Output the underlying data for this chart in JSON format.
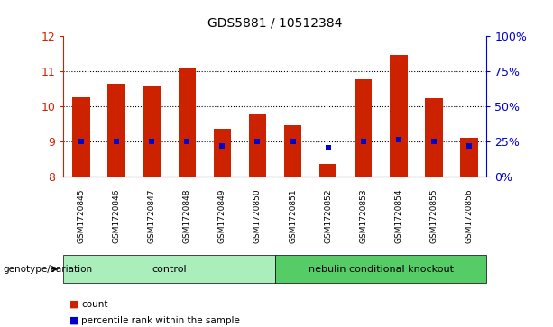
{
  "title": "GDS5881 / 10512384",
  "samples": [
    "GSM1720845",
    "GSM1720846",
    "GSM1720847",
    "GSM1720848",
    "GSM1720849",
    "GSM1720850",
    "GSM1720851",
    "GSM1720852",
    "GSM1720853",
    "GSM1720854",
    "GSM1720855",
    "GSM1720856"
  ],
  "bar_tops": [
    10.25,
    10.65,
    10.6,
    11.1,
    9.35,
    9.8,
    9.47,
    8.35,
    10.78,
    11.45,
    10.23,
    9.1
  ],
  "bar_bottom": 8.0,
  "percentile_values": [
    9.0,
    9.0,
    9.0,
    9.0,
    8.88,
    9.0,
    9.0,
    8.82,
    9.0,
    9.05,
    9.0,
    8.88
  ],
  "bar_color": "#cc2200",
  "percentile_color": "#0000cc",
  "ylim_left": [
    8,
    12
  ],
  "ylim_right": [
    0,
    100
  ],
  "yticks_left": [
    8,
    9,
    10,
    11,
    12
  ],
  "yticks_right": [
    0,
    25,
    50,
    75,
    100
  ],
  "ytick_labels_right": [
    "0%",
    "25%",
    "50%",
    "75%",
    "100%"
  ],
  "grid_values": [
    9,
    10,
    11
  ],
  "groups": [
    {
      "label": "control",
      "start": 0,
      "end": 5,
      "color": "#aaeebb"
    },
    {
      "label": "nebulin conditional knockout",
      "start": 6,
      "end": 11,
      "color": "#55cc66"
    }
  ],
  "group_row_label": "genotype/variation",
  "legend_count_label": "count",
  "legend_percentile_label": "percentile rank within the sample",
  "tick_area_bg": "#cccccc",
  "plot_bg": "#ffffff",
  "title_fontsize": 10,
  "axis_color_left": "#cc2200",
  "axis_color_right": "#0000cc",
  "bar_width": 0.5
}
